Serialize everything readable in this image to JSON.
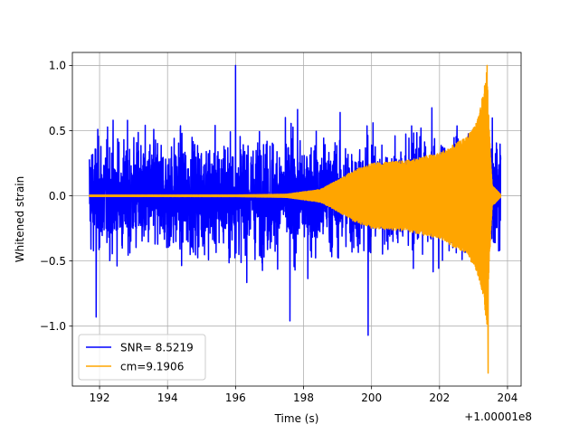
{
  "chart_data": {
    "type": "line",
    "title": "",
    "xlabel": "Time (s)",
    "ylabel": "Whitened strain",
    "x_offset_label": "+1.00001e8",
    "xlim": [
      191.2,
      204.4
    ],
    "ylim": [
      -1.46,
      1.1
    ],
    "x_ticks": [
      192,
      194,
      196,
      198,
      200,
      202,
      204
    ],
    "x_tick_labels": [
      "192",
      "194",
      "196",
      "198",
      "200",
      "202",
      "204"
    ],
    "y_ticks": [
      -1.0,
      -0.5,
      0.0,
      0.5,
      1.0
    ],
    "y_tick_labels": [
      "−1.0",
      "−0.5",
      "0.0",
      "0.5",
      "1.0"
    ],
    "grid": true,
    "legend_position": "lower-left",
    "series": [
      {
        "name": "SNR= 8.5219",
        "color": "#0000ff",
        "kind": "noise",
        "x_range": [
          191.7,
          203.8
        ],
        "typical_amplitude": 0.5,
        "peaks": [
          {
            "x": 196.0,
            "y": 1.0
          },
          {
            "x": 199.9,
            "y": -1.07
          },
          {
            "x": 191.9,
            "y": -0.93
          },
          {
            "x": 197.6,
            "y": -0.96
          }
        ]
      },
      {
        "name": "cm=9.1906",
        "color": "#ffa500",
        "kind": "chirp",
        "x_range": [
          191.7,
          203.8
        ],
        "merger_x": 203.4,
        "envelope": [
          {
            "x": 191.7,
            "y": 0.005
          },
          {
            "x": 196.0,
            "y": 0.006
          },
          {
            "x": 197.5,
            "y": 0.012
          },
          {
            "x": 198.5,
            "y": 0.05
          },
          {
            "x": 199.0,
            "y": 0.12
          },
          {
            "x": 199.5,
            "y": 0.2
          },
          {
            "x": 200.0,
            "y": 0.25
          },
          {
            "x": 200.5,
            "y": 0.26
          },
          {
            "x": 201.0,
            "y": 0.27
          },
          {
            "x": 202.0,
            "y": 0.33
          },
          {
            "x": 202.8,
            "y": 0.45
          },
          {
            "x": 203.1,
            "y": 0.58
          },
          {
            "x": 203.3,
            "y": 0.8
          },
          {
            "x": 203.4,
            "y": 1.0
          },
          {
            "x": 203.45,
            "y": 0.6
          },
          {
            "x": 203.55,
            "y": 0.08
          },
          {
            "x": 203.8,
            "y": 0.01
          }
        ],
        "extremes": [
          {
            "x": 203.4,
            "y": 1.0
          },
          {
            "x": 203.43,
            "y": -1.36
          }
        ]
      }
    ]
  }
}
